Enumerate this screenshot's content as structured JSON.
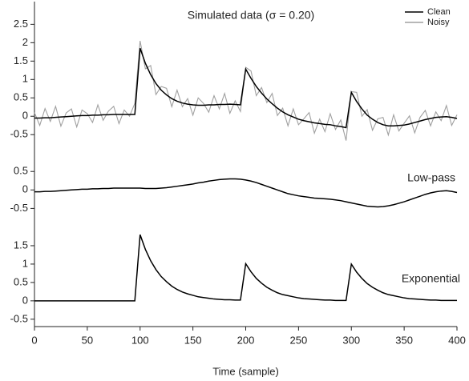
{
  "chart_data": [
    {
      "type": "line",
      "title": "Simulated data (σ = 0.20)",
      "legend": "upper right",
      "x": [
        0,
        5,
        10,
        15,
        20,
        25,
        30,
        35,
        40,
        45,
        50,
        55,
        60,
        65,
        70,
        75,
        80,
        85,
        90,
        95,
        100,
        105,
        110,
        115,
        120,
        125,
        130,
        135,
        140,
        145,
        150,
        155,
        160,
        165,
        170,
        175,
        180,
        185,
        190,
        195,
        200,
        205,
        210,
        215,
        220,
        225,
        230,
        235,
        240,
        245,
        250,
        255,
        260,
        265,
        270,
        275,
        280,
        285,
        290,
        295,
        300,
        305,
        310,
        315,
        320,
        325,
        330,
        335,
        340,
        345,
        350,
        355,
        360,
        365,
        370,
        375,
        380,
        385,
        390,
        395,
        400
      ],
      "series": [
        {
          "name": "Clean",
          "color": "#000000",
          "values": [
            -0.05,
            -0.05,
            -0.04,
            -0.04,
            -0.03,
            -0.02,
            -0.01,
            0,
            0.01,
            0.02,
            0.02,
            0.03,
            0.03,
            0.04,
            0.04,
            0.05,
            0.05,
            0.05,
            0.05,
            0.05,
            1.85,
            1.44,
            1.13,
            0.89,
            0.71,
            0.58,
            0.48,
            0.41,
            0.36,
            0.33,
            0.31,
            0.3,
            0.3,
            0.31,
            0.31,
            0.32,
            0.32,
            0.33,
            0.32,
            0.31,
            1.28,
            1.03,
            0.81,
            0.63,
            0.47,
            0.34,
            0.22,
            0.12,
            0.04,
            -0.02,
            -0.08,
            -0.12,
            -0.15,
            -0.18,
            -0.2,
            -0.22,
            -0.23,
            -0.26,
            -0.28,
            -0.31,
            0.65,
            0.4,
            0.2,
            0.03,
            -0.08,
            -0.17,
            -0.23,
            -0.26,
            -0.26,
            -0.25,
            -0.24,
            -0.21,
            -0.17,
            -0.13,
            -0.09,
            -0.06,
            -0.03,
            -0.02,
            -0.01,
            -0.03,
            -0.06
          ]
        },
        {
          "name": "Noisy",
          "color": "#a0a0a0",
          "values": [
            0.1,
            -0.25,
            0.21,
            -0.14,
            0.27,
            -0.27,
            0.09,
            0.2,
            -0.29,
            0.17,
            0.07,
            -0.17,
            0.31,
            -0.11,
            0.14,
            0.27,
            -0.2,
            0.17,
            0,
            0.35,
            2.05,
            1.29,
            1.38,
            0.59,
            0.81,
            0.76,
            0.26,
            0.71,
            0.26,
            0.48,
            0.03,
            0.5,
            0.35,
            0.11,
            0.56,
            0.2,
            0.62,
            0.08,
            0.42,
            0.13,
            1.33,
            1.23,
            0.56,
            0.78,
            0.37,
            0.62,
            0.02,
            0.22,
            -0.26,
            0.2,
            -0.23,
            -0.07,
            0.1,
            -0.46,
            -0.08,
            -0.42,
            0.07,
            -0.36,
            -0.1,
            -0.66,
            0.67,
            0.65,
            0,
            0.18,
            -0.38,
            -0.07,
            -0.03,
            -0.51,
            0.04,
            -0.4,
            -0.19,
            0.01,
            -0.45,
            -0.03,
            0.16,
            -0.26,
            0.12,
            -0.12,
            0.29,
            -0.25,
            0.04
          ]
        }
      ],
      "ylim": [
        -0.8,
        2.9
      ],
      "yticks": [
        -0.5,
        0,
        0.5,
        1,
        1.5,
        2,
        2.5
      ]
    },
    {
      "type": "line",
      "title": "Low-pass",
      "color": "#000000",
      "x": [
        0,
        5,
        10,
        15,
        20,
        25,
        30,
        35,
        40,
        45,
        50,
        55,
        60,
        65,
        70,
        75,
        80,
        85,
        90,
        95,
        100,
        105,
        110,
        115,
        120,
        125,
        130,
        135,
        140,
        145,
        150,
        155,
        160,
        165,
        170,
        175,
        180,
        185,
        190,
        195,
        200,
        205,
        210,
        215,
        220,
        225,
        230,
        235,
        240,
        245,
        250,
        255,
        260,
        265,
        270,
        275,
        280,
        285,
        290,
        295,
        300,
        305,
        310,
        315,
        320,
        325,
        330,
        335,
        340,
        345,
        350,
        355,
        360,
        365,
        370,
        375,
        380,
        385,
        390,
        395,
        400
      ],
      "values": [
        -0.05,
        -0.05,
        -0.04,
        -0.04,
        -0.03,
        -0.02,
        -0.01,
        0,
        0.01,
        0.02,
        0.02,
        0.03,
        0.03,
        0.04,
        0.04,
        0.05,
        0.05,
        0.05,
        0.05,
        0.05,
        0.05,
        0.04,
        0.04,
        0.04,
        0.05,
        0.06,
        0.08,
        0.1,
        0.12,
        0.14,
        0.16,
        0.19,
        0.21,
        0.24,
        0.26,
        0.28,
        0.29,
        0.3,
        0.3,
        0.29,
        0.27,
        0.24,
        0.2,
        0.15,
        0.1,
        0.05,
        0,
        -0.05,
        -0.1,
        -0.13,
        -0.16,
        -0.18,
        -0.2,
        -0.22,
        -0.23,
        -0.24,
        -0.25,
        -0.27,
        -0.29,
        -0.32,
        -0.35,
        -0.38,
        -0.41,
        -0.44,
        -0.45,
        -0.46,
        -0.45,
        -0.43,
        -0.4,
        -0.36,
        -0.32,
        -0.27,
        -0.22,
        -0.17,
        -0.12,
        -0.08,
        -0.05,
        -0.03,
        -0.02,
        -0.04,
        -0.07
      ],
      "ylim": [
        -0.6,
        0.7
      ],
      "yticks": [
        -0.5,
        0,
        0.5
      ]
    },
    {
      "type": "line",
      "title": "Exponential",
      "color": "#000000",
      "xlabel": "Time (sample)",
      "x": [
        0,
        5,
        10,
        15,
        20,
        25,
        30,
        35,
        40,
        45,
        50,
        55,
        60,
        65,
        70,
        75,
        80,
        85,
        90,
        95,
        100,
        105,
        110,
        115,
        120,
        125,
        130,
        135,
        140,
        145,
        150,
        155,
        160,
        165,
        170,
        175,
        180,
        185,
        190,
        195,
        200,
        205,
        210,
        215,
        220,
        225,
        230,
        235,
        240,
        245,
        250,
        255,
        260,
        265,
        270,
        275,
        280,
        285,
        290,
        295,
        300,
        305,
        310,
        315,
        320,
        325,
        330,
        335,
        340,
        345,
        350,
        355,
        360,
        365,
        370,
        375,
        380,
        385,
        390,
        395,
        400
      ],
      "values": [
        0,
        0,
        0,
        0,
        0,
        0,
        0,
        0,
        0,
        0,
        0,
        0,
        0,
        0,
        0,
        0,
        0,
        0,
        0,
        0,
        1.8,
        1.4,
        1.09,
        0.85,
        0.66,
        0.52,
        0.4,
        0.31,
        0.24,
        0.19,
        0.15,
        0.11,
        0.09,
        0.07,
        0.05,
        0.04,
        0.03,
        0.03,
        0.02,
        0.02,
        1.01,
        0.79,
        0.61,
        0.48,
        0.37,
        0.29,
        0.22,
        0.17,
        0.14,
        0.11,
        0.08,
        0.06,
        0.05,
        0.04,
        0.03,
        0.02,
        0.02,
        0.01,
        0.01,
        0.01,
        1.0,
        0.78,
        0.61,
        0.47,
        0.37,
        0.29,
        0.22,
        0.17,
        0.14,
        0.11,
        0.08,
        0.06,
        0.05,
        0.04,
        0.03,
        0.02,
        0.02,
        0.01,
        0.01,
        0.01,
        0.01
      ],
      "ylim": [
        -0.7,
        2.0
      ],
      "yticks": [
        -0.5,
        0,
        0.5,
        1,
        1.5
      ],
      "xlim": [
        0,
        400
      ],
      "xticks": [
        0,
        50,
        100,
        150,
        200,
        250,
        300,
        350,
        400
      ]
    }
  ]
}
